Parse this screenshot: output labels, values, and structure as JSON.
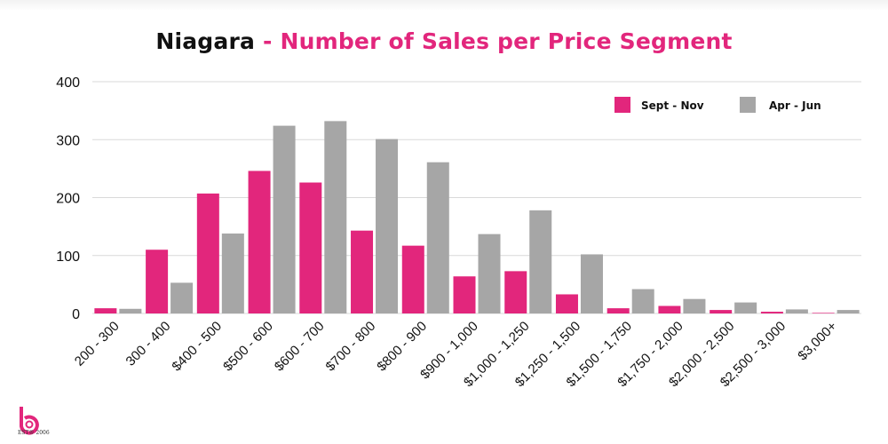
{
  "title": {
    "main": "Niagara",
    "separator": " - ",
    "sub": "Number of Sales per Price Segment"
  },
  "colors": {
    "series_a": "#e2267c",
    "series_b": "#a6a6a6",
    "grid": "#d9d9d9",
    "text": "#111111",
    "title_accent": "#e2267c"
  },
  "logo": {
    "icon": "b-logo-icon",
    "text": "EST® 2006"
  },
  "chart_data": {
    "type": "bar",
    "title": "Niagara - Number of Sales per Price Segment",
    "xlabel": "",
    "ylabel": "",
    "ylim": [
      0,
      400
    ],
    "yticks": [
      0,
      100,
      200,
      300,
      400
    ],
    "grid": true,
    "legend_position": "top-right",
    "categories": [
      "200 - 300",
      "300 - 400",
      "$400 - 500",
      "$500 - 600",
      "$600 - 700",
      "$700 - 800",
      "$800 - 900",
      "$900 - 1,000",
      "$1,000 - 1,250",
      "$1,250 - 1,500",
      "$1,500 - 1,750",
      "$1,750 - 2,000",
      "$2,000 - 2,500",
      "$2,500 - 3,000",
      "$3,000+"
    ],
    "series": [
      {
        "name": "Sept - Nov",
        "values": [
          9,
          110,
          207,
          246,
          226,
          143,
          117,
          64,
          73,
          33,
          9,
          13,
          6,
          3,
          1
        ]
      },
      {
        "name": "Apr - Jun",
        "values": [
          8,
          53,
          138,
          324,
          332,
          301,
          261,
          137,
          178,
          102,
          42,
          25,
          19,
          7,
          6
        ]
      }
    ]
  }
}
